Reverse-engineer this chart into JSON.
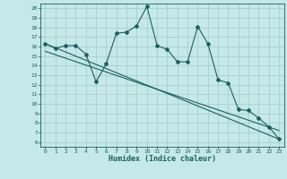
{
  "title": "",
  "xlabel": "Humidex (Indice chaleur)",
  "ylabel": "",
  "bg_color": "#c5e8e8",
  "grid_color": "#a8d0d0",
  "line_color": "#1a6060",
  "xlim": [
    -0.5,
    23.5
  ],
  "ylim": [
    5.5,
    20.5
  ],
  "xticks": [
    0,
    1,
    2,
    3,
    4,
    5,
    6,
    7,
    8,
    9,
    10,
    11,
    12,
    13,
    14,
    15,
    16,
    17,
    18,
    19,
    20,
    21,
    22,
    23
  ],
  "yticks": [
    6,
    7,
    8,
    9,
    10,
    11,
    12,
    13,
    14,
    15,
    16,
    17,
    18,
    19,
    20
  ],
  "jagged_x": [
    0,
    1,
    2,
    3,
    4,
    5,
    6,
    7,
    8,
    9,
    10,
    11,
    12,
    13,
    14,
    15,
    16,
    17,
    18,
    19,
    20,
    21,
    22,
    23
  ],
  "jagged_y": [
    16.3,
    15.8,
    16.1,
    16.1,
    15.2,
    12.3,
    14.2,
    17.4,
    17.5,
    18.2,
    20.2,
    16.1,
    15.7,
    14.4,
    14.4,
    18.1,
    16.3,
    12.5,
    12.2,
    9.4,
    9.3,
    8.5,
    7.6,
    6.3
  ],
  "trend_x": [
    0,
    23
  ],
  "trend_y": [
    16.3,
    6.3
  ],
  "trend2_x": [
    0,
    23
  ],
  "trend2_y": [
    15.5,
    7.2
  ]
}
